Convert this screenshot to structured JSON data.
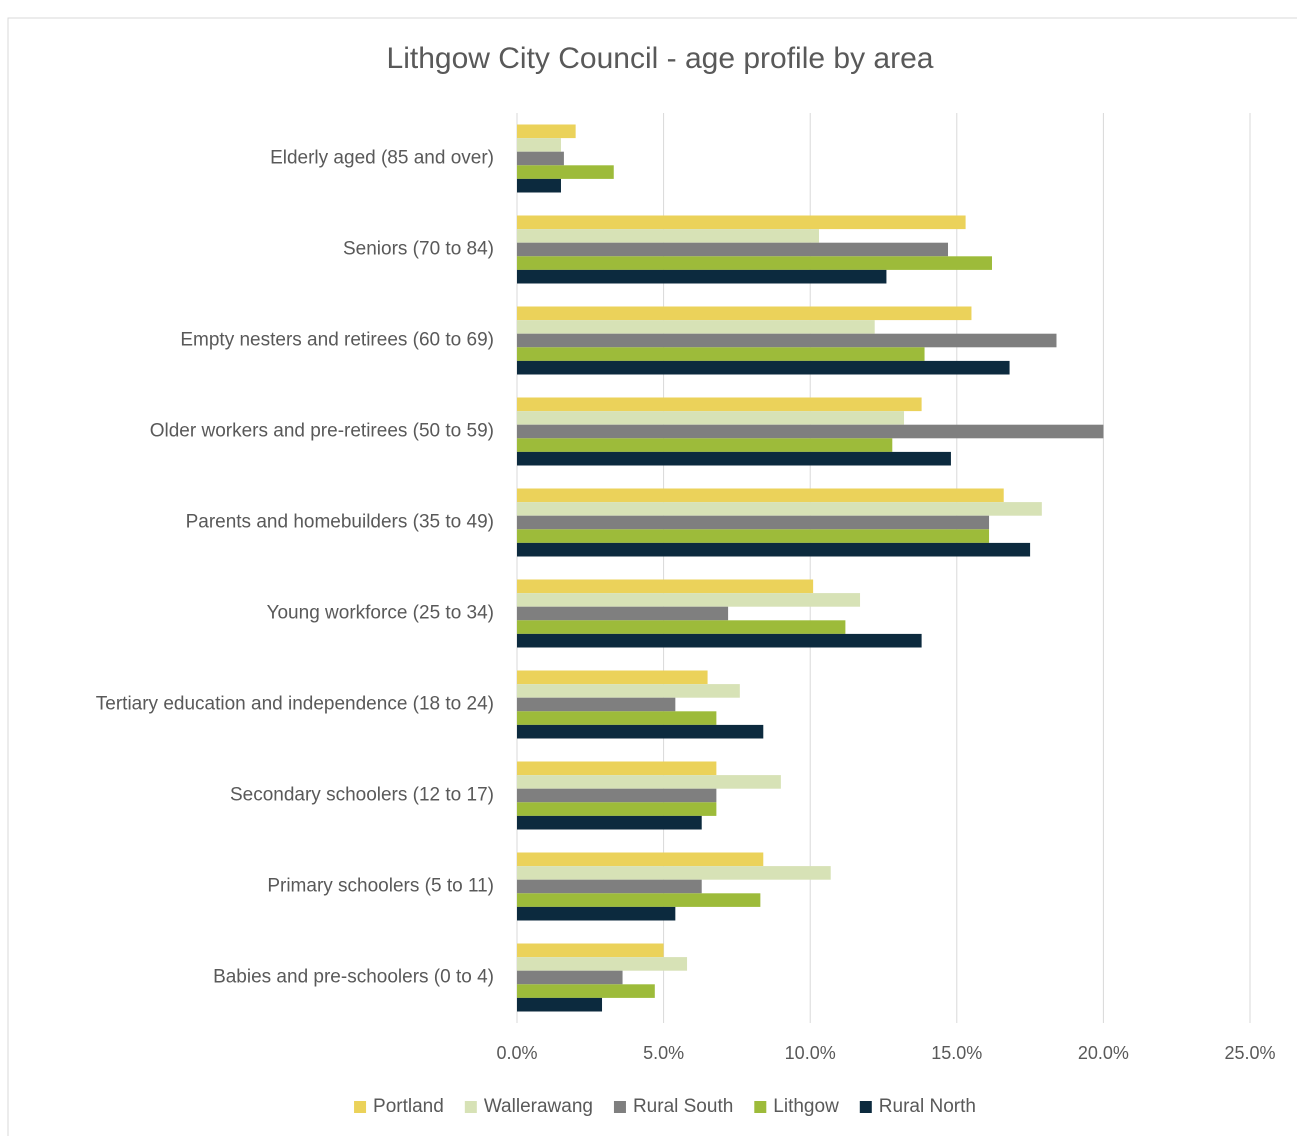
{
  "chart_data": {
    "type": "bar",
    "orientation": "horizontal",
    "title": "Lithgow City Council - age profile by area",
    "categories": [
      "Elderly aged (85 and over)",
      "Seniors (70 to 84)",
      "Empty nesters and retirees (60 to 69)",
      "Older workers and pre-retirees (50 to 59)",
      "Parents and homebuilders (35 to 49)",
      "Young workforce (25 to 34)",
      "Tertiary education and independence (18 to 24)",
      "Secondary schoolers (12 to 17)",
      "Primary schoolers (5 to 11)",
      "Babies and pre-schoolers (0 to 4)"
    ],
    "series": [
      {
        "name": "Portland",
        "color": "#ebd25a",
        "values": [
          2.0,
          15.3,
          15.5,
          13.8,
          16.6,
          10.1,
          6.5,
          6.8,
          8.4,
          5.0
        ]
      },
      {
        "name": "Wallerawang",
        "color": "#d7e2b6",
        "values": [
          1.5,
          10.3,
          12.2,
          13.2,
          17.9,
          11.7,
          7.6,
          9.0,
          10.7,
          5.8
        ]
      },
      {
        "name": "Rural South",
        "color": "#7f7f7f",
        "values": [
          1.6,
          14.7,
          18.4,
          20.0,
          16.1,
          7.2,
          5.4,
          6.8,
          6.3,
          3.6
        ]
      },
      {
        "name": "Lithgow",
        "color": "#9dbb3a",
        "values": [
          3.3,
          16.2,
          13.9,
          12.8,
          16.1,
          11.2,
          6.8,
          6.8,
          8.3,
          4.7
        ]
      },
      {
        "name": "Rural North",
        "color": "#0c2a3e",
        "values": [
          1.5,
          12.6,
          16.8,
          14.8,
          17.5,
          13.8,
          8.4,
          6.3,
          5.4,
          2.9
        ]
      }
    ],
    "xlim": [
      0,
      25
    ],
    "xticks": [
      {
        "value": 0,
        "label": "0.0%"
      },
      {
        "value": 5,
        "label": "5.0%"
      },
      {
        "value": 10,
        "label": "10.0%"
      },
      {
        "value": 15,
        "label": "15.0%"
      },
      {
        "value": 20,
        "label": "20.0%"
      },
      {
        "value": 25,
        "label": "25.0%"
      }
    ],
    "grid": true,
    "legend": "bottom"
  }
}
